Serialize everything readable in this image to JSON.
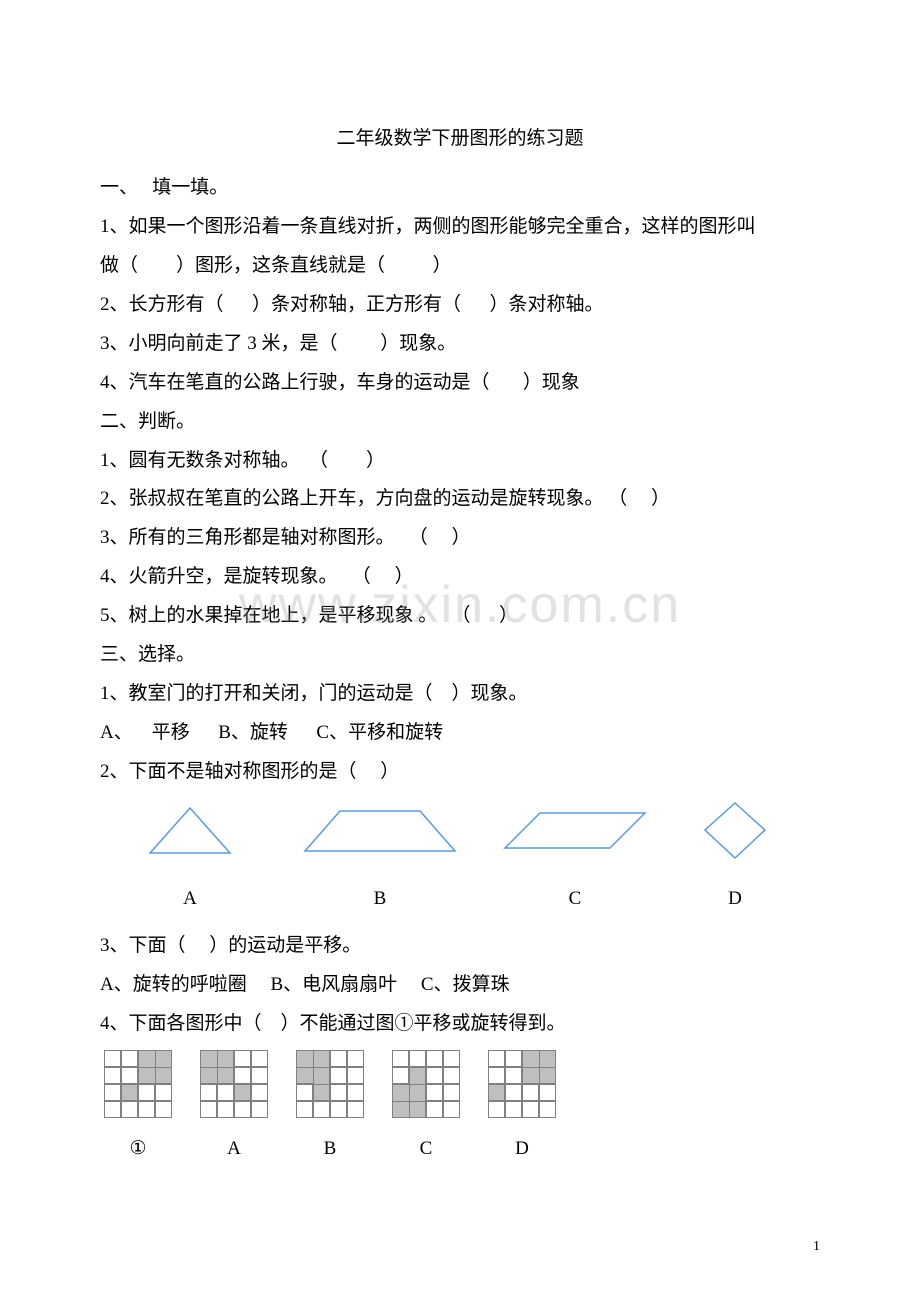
{
  "title": "二年级数学下册图形的练习题",
  "section1": {
    "heading": "一、   填一填。",
    "q1a": "1、如果一个图形沿着一条直线对折，两侧的图形能够完全重合，这样的图形叫",
    "q1b": "做（        ）图形，这条直线就是（          ）",
    "q2": "2、长方形有（      ）条对称轴，正方形有（      ）条对称轴。",
    "q3": "3、小明向前走了 3 米，是（         ）现象。",
    "q4": "4、汽车在笔直的公路上行驶，车身的运动是（       ）现象"
  },
  "section2": {
    "heading": "二、判断。",
    "q1": "1、圆有无数条对称轴。  （        ）",
    "q2": "2、张叔叔在笔直的公路上开车，方向盘的运动是旋转现象。 （     ）",
    "q3": "3、所有的三角形都是轴对称图形。   （     ）",
    "q4": "4、火箭升空，是旋转现象。   （     ）",
    "q5": "5、树上的水果掉在地上，是平移现象 。   （      ）"
  },
  "section3": {
    "heading": "三、选择。",
    "q1": "1、教室门的打开和关闭，门的运动是（    ）现象。",
    "q1opts": "A、    平移      B、旋转      C、平移和旋转",
    "q2": "2、下面不是轴对称图形的是（     ）",
    "q2labels": {
      "A": "A",
      "B": "B",
      "C": "C",
      "D": "D"
    },
    "q3": "3、下面（     ）的运动是平移。",
    "q3opts": "A、旋转的呼啦圈     B、电风扇扇叶     C、拨算珠",
    "q4": "4、下面各图形中（    ）不能通过图①平移或旋转得到。",
    "q4labels": {
      "ref": "①",
      "A": "A",
      "B": "B",
      "C": "C",
      "D": "D"
    },
    "q4grids": {
      "ref": [
        0,
        0,
        1,
        1,
        0,
        0,
        1,
        1,
        0,
        1,
        0,
        0,
        0,
        0,
        0,
        0
      ],
      "A": [
        1,
        1,
        0,
        0,
        1,
        1,
        0,
        0,
        0,
        0,
        1,
        0,
        0,
        0,
        0,
        0
      ],
      "B": [
        1,
        1,
        0,
        0,
        1,
        1,
        0,
        0,
        0,
        1,
        0,
        0,
        0,
        0,
        0,
        0
      ],
      "C": [
        0,
        0,
        0,
        0,
        0,
        1,
        0,
        0,
        1,
        1,
        0,
        0,
        1,
        1,
        0,
        0
      ],
      "D": [
        0,
        0,
        1,
        1,
        0,
        0,
        1,
        1,
        1,
        0,
        0,
        0,
        0,
        0,
        0,
        0
      ]
    }
  },
  "shapeColors": {
    "stroke": "#5b9bd5",
    "fill": "none",
    "strokeWidth": 1.5
  },
  "gridColors": {
    "border": "#808080",
    "fill": "#bfbfbf"
  },
  "watermark": "www.zixin.com.cn",
  "pageNumber": "1"
}
